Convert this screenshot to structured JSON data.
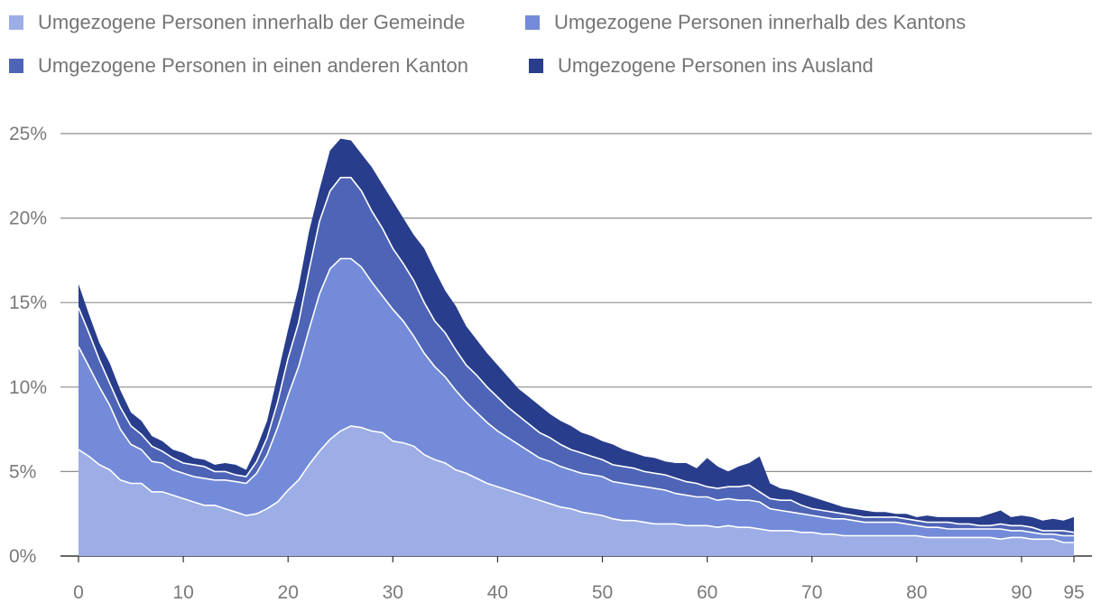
{
  "chart_data": {
    "type": "area",
    "stacked": true,
    "title": "",
    "xlabel": "",
    "ylabel": "",
    "xlim": [
      0,
      95
    ],
    "ylim": [
      0,
      25
    ],
    "x_ticks": [
      0,
      10,
      20,
      30,
      40,
      50,
      60,
      70,
      80,
      90,
      95
    ],
    "y_ticks": [
      {
        "value": 0,
        "label": "0%"
      },
      {
        "value": 5,
        "label": "5%"
      },
      {
        "value": 10,
        "label": "10%"
      },
      {
        "value": 15,
        "label": "15%"
      },
      {
        "value": 20,
        "label": "20%"
      },
      {
        "value": 25,
        "label": "25%"
      }
    ],
    "grid": true,
    "legend_position": "top",
    "x": [
      0,
      1,
      2,
      3,
      4,
      5,
      6,
      7,
      8,
      9,
      10,
      11,
      12,
      13,
      14,
      15,
      16,
      17,
      18,
      19,
      20,
      21,
      22,
      23,
      24,
      25,
      26,
      27,
      28,
      29,
      30,
      31,
      32,
      33,
      34,
      35,
      36,
      37,
      38,
      39,
      40,
      41,
      42,
      43,
      44,
      45,
      46,
      47,
      48,
      49,
      50,
      51,
      52,
      53,
      54,
      55,
      56,
      57,
      58,
      59,
      60,
      61,
      62,
      63,
      64,
      65,
      66,
      67,
      68,
      69,
      70,
      71,
      72,
      73,
      74,
      75,
      76,
      77,
      78,
      79,
      80,
      81,
      82,
      83,
      84,
      85,
      86,
      87,
      88,
      89,
      90,
      91,
      92,
      93,
      94,
      95
    ],
    "cumulative_totals": [
      [
        6.3,
        5.9,
        5.4,
        5.1,
        4.5,
        4.3,
        4.3,
        3.8,
        3.8,
        3.6,
        3.4,
        3.2,
        3.0,
        3.0,
        2.8,
        2.6,
        2.4,
        2.5,
        2.8,
        3.2,
        3.9,
        4.5,
        5.4,
        6.2,
        6.9,
        7.4,
        7.7,
        7.6,
        7.4,
        7.3,
        6.8,
        6.7,
        6.5,
        6.0,
        5.7,
        5.5,
        5.1,
        4.9,
        4.6,
        4.3,
        4.1,
        3.9,
        3.7,
        3.5,
        3.3,
        3.1,
        2.9,
        2.8,
        2.6,
        2.5,
        2.4,
        2.2,
        2.1,
        2.1,
        2.0,
        1.9,
        1.9,
        1.9,
        1.8,
        1.8,
        1.8,
        1.7,
        1.8,
        1.7,
        1.7,
        1.6,
        1.5,
        1.5,
        1.5,
        1.4,
        1.4,
        1.3,
        1.3,
        1.2,
        1.2,
        1.2,
        1.2,
        1.2,
        1.2,
        1.2,
        1.2,
        1.1,
        1.1,
        1.1,
        1.1,
        1.1,
        1.1,
        1.1,
        1.0,
        1.1,
        1.1,
        1.0,
        1.0,
        1.0,
        0.8,
        0.8
      ],
      [
        12.4,
        11.2,
        10.0,
        8.9,
        7.5,
        6.6,
        6.3,
        5.6,
        5.5,
        5.1,
        4.9,
        4.7,
        4.6,
        4.5,
        4.5,
        4.4,
        4.3,
        4.9,
        6.0,
        7.6,
        9.5,
        11.2,
        13.4,
        15.5,
        17.0,
        17.6,
        17.6,
        17.1,
        16.2,
        15.4,
        14.6,
        13.9,
        13.0,
        12.0,
        11.2,
        10.6,
        9.8,
        9.1,
        8.5,
        7.9,
        7.4,
        7.0,
        6.6,
        6.2,
        5.8,
        5.6,
        5.3,
        5.1,
        4.9,
        4.8,
        4.7,
        4.4,
        4.3,
        4.2,
        4.1,
        4.0,
        3.9,
        3.7,
        3.6,
        3.5,
        3.5,
        3.3,
        3.4,
        3.3,
        3.3,
        3.2,
        2.8,
        2.7,
        2.6,
        2.5,
        2.4,
        2.3,
        2.2,
        2.2,
        2.1,
        2.0,
        2.0,
        2.0,
        2.0,
        1.9,
        1.8,
        1.7,
        1.7,
        1.6,
        1.6,
        1.6,
        1.6,
        1.6,
        1.6,
        1.5,
        1.5,
        1.4,
        1.3,
        1.3,
        1.2,
        1.2
      ],
      [
        14.7,
        13.2,
        11.6,
        10.2,
        8.8,
        7.7,
        7.2,
        6.5,
        6.2,
        5.8,
        5.5,
        5.4,
        5.3,
        5.0,
        5.0,
        4.8,
        4.7,
        5.6,
        7.0,
        9.1,
        11.7,
        13.8,
        16.9,
        19.8,
        21.6,
        22.4,
        22.4,
        21.6,
        20.4,
        19.4,
        18.2,
        17.3,
        16.3,
        15.0,
        13.9,
        13.2,
        12.2,
        11.3,
        10.7,
        10.0,
        9.4,
        8.8,
        8.3,
        7.8,
        7.3,
        7.0,
        6.6,
        6.3,
        6.1,
        5.9,
        5.7,
        5.4,
        5.3,
        5.2,
        5.0,
        4.9,
        4.8,
        4.6,
        4.4,
        4.3,
        4.1,
        4.0,
        4.1,
        4.1,
        4.2,
        3.8,
        3.4,
        3.3,
        3.3,
        3.0,
        2.8,
        2.7,
        2.6,
        2.5,
        2.4,
        2.3,
        2.3,
        2.3,
        2.3,
        2.2,
        2.1,
        2.0,
        2.0,
        2.0,
        1.9,
        1.9,
        1.8,
        1.8,
        1.9,
        1.8,
        1.8,
        1.7,
        1.5,
        1.5,
        1.5,
        1.4
      ],
      [
        16.1,
        14.3,
        12.6,
        11.4,
        9.8,
        8.5,
        8.0,
        7.1,
        6.8,
        6.3,
        6.1,
        5.8,
        5.7,
        5.4,
        5.5,
        5.4,
        5.1,
        6.4,
        8.0,
        10.7,
        13.4,
        15.9,
        19.2,
        21.7,
        24.0,
        24.7,
        24.6,
        23.8,
        23.0,
        22.0,
        21.0,
        20.0,
        19.0,
        18.2,
        16.9,
        15.7,
        14.8,
        13.6,
        12.8,
        12.0,
        11.3,
        10.6,
        9.9,
        9.4,
        8.9,
        8.4,
        8.0,
        7.7,
        7.3,
        7.1,
        6.8,
        6.6,
        6.3,
        6.1,
        5.9,
        5.8,
        5.6,
        5.5,
        5.5,
        5.2,
        5.8,
        5.3,
        5.0,
        5.3,
        5.5,
        5.9,
        4.3,
        4.0,
        3.9,
        3.7,
        3.5,
        3.3,
        3.1,
        2.9,
        2.8,
        2.7,
        2.6,
        2.6,
        2.5,
        2.5,
        2.3,
        2.4,
        2.3,
        2.3,
        2.3,
        2.3,
        2.3,
        2.5,
        2.7,
        2.3,
        2.4,
        2.3,
        2.1,
        2.2,
        2.1,
        2.3
      ]
    ],
    "series": [
      {
        "name": "Umgezogene Personen innerhalb der Gemeinde",
        "color": "#9dade6"
      },
      {
        "name": "Umgezogene Personen innerhalb des Kantons",
        "color": "#738bd8"
      },
      {
        "name": "Umgezogene Personen in einen anderen Kanton",
        "color": "#4e64b6"
      },
      {
        "name": "Umgezogene Personen ins Ausland",
        "color": "#283d8c"
      }
    ]
  }
}
